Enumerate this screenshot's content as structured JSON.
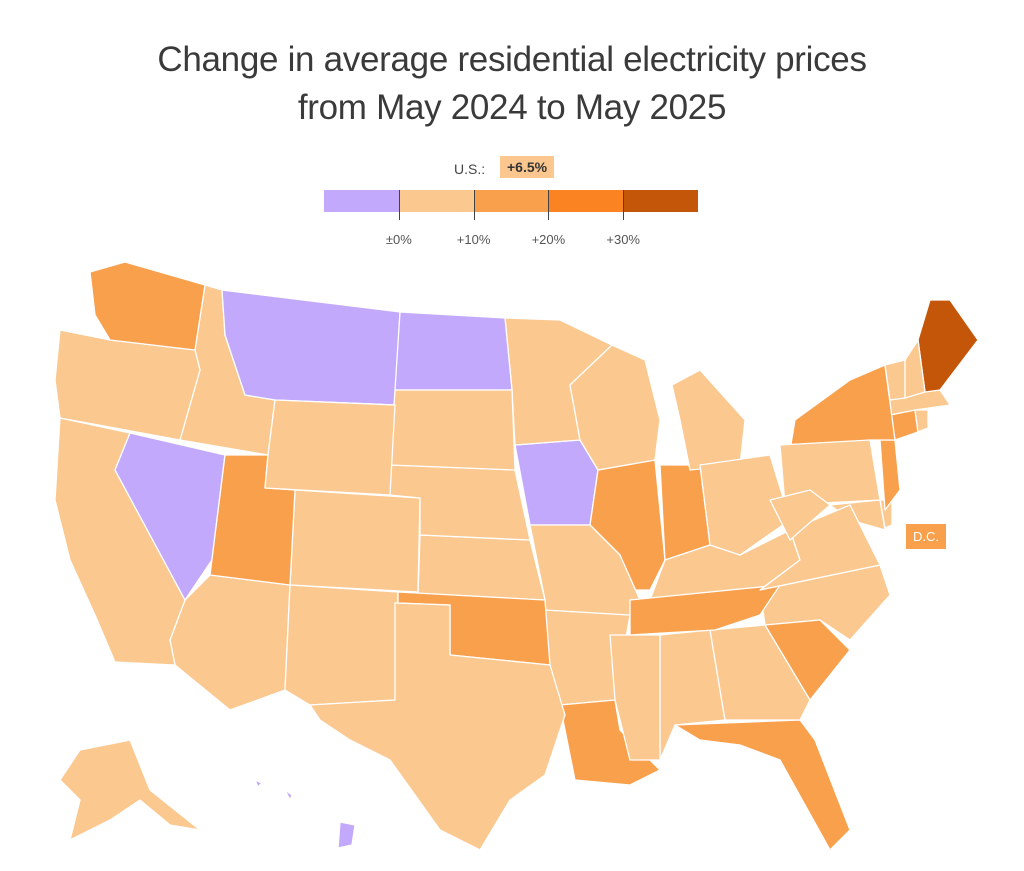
{
  "header": {
    "title_line1": "Change in average residential electricity prices",
    "title_line2": "from May 2024 to May 2025"
  },
  "national": {
    "label": "U.S.:",
    "value": "+6.5%",
    "value_number": 6.5
  },
  "legend": {
    "bins": [
      {
        "range": "< 0%",
        "color": "#c3a9fb"
      },
      {
        "range": "0% to 10%",
        "color": "#fbc88f"
      },
      {
        "range": "10% to 20%",
        "color": "#f9a04d"
      },
      {
        "range": "20% to 30%",
        "color": "#fb8321"
      },
      {
        "range": "> 30%",
        "color": "#c4560a"
      }
    ],
    "tick_labels": [
      "±0%",
      "+10%",
      "+20%",
      "+30%"
    ]
  },
  "dc": {
    "label": "D.C.",
    "bin": 2
  },
  "chart_data": {
    "type": "choropleth",
    "title": "Change in average residential electricity prices from May 2024 to May 2025",
    "national_change_pct": 6.5,
    "bin_edges_pct": [
      0,
      10,
      20,
      30
    ],
    "states": {
      "AK": 1,
      "AL": 1,
      "AR": 1,
      "AZ": 1,
      "CA": 1,
      "CO": 1,
      "CT": 2,
      "DE": 1,
      "FL": 2,
      "GA": 1,
      "HI": 0,
      "IA": 0,
      "ID": 1,
      "IL": 2,
      "IN": 2,
      "KS": 1,
      "KY": 1,
      "LA": 2,
      "MA": 1,
      "MD": 1,
      "ME": 4,
      "MI": 1,
      "MN": 1,
      "MO": 1,
      "MS": 1,
      "MT": 0,
      "NC": 1,
      "ND": 0,
      "NE": 1,
      "NH": 1,
      "NJ": 2,
      "NM": 1,
      "NV": 0,
      "NY": 2,
      "OH": 1,
      "OK": 2,
      "OR": 1,
      "PA": 1,
      "RI": 1,
      "SC": 2,
      "SD": 1,
      "TN": 2,
      "TX": 1,
      "UT": 2,
      "VA": 1,
      "VT": 1,
      "WA": 2,
      "WI": 1,
      "WV": 1,
      "WY": 1,
      "DC": 2
    }
  }
}
